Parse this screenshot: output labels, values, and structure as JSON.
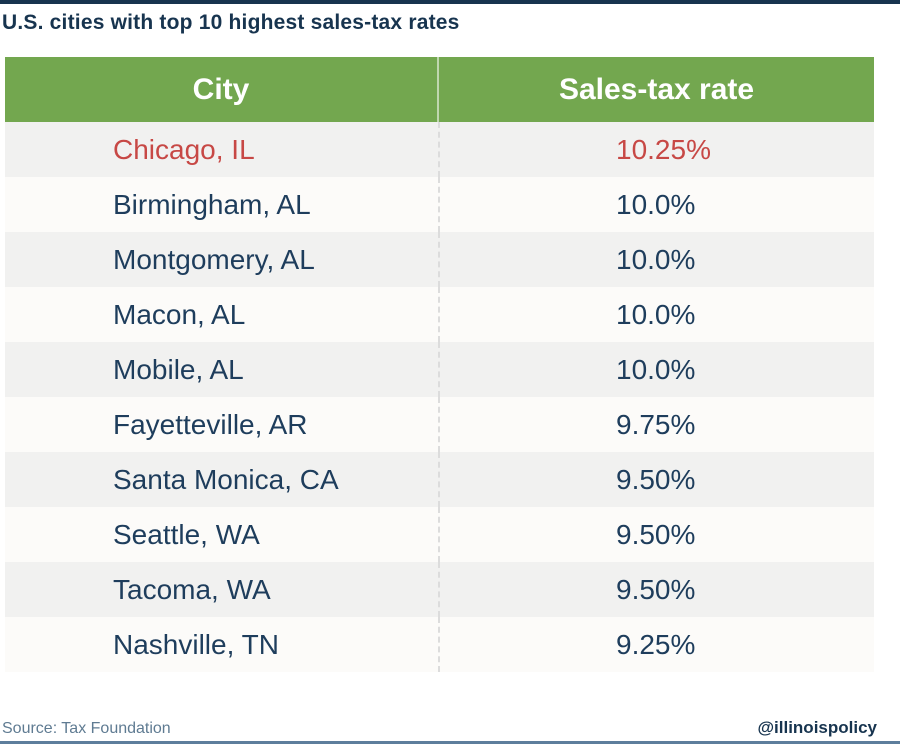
{
  "title": "U.S. cities with top 10 highest sales-tax rates",
  "table": {
    "headers": {
      "city": "City",
      "rate": "Sales-tax rate"
    },
    "rows": [
      {
        "city": "Chicago, IL",
        "rate": "10.25%",
        "highlight": true
      },
      {
        "city": "Birmingham, AL",
        "rate": "10.0%",
        "highlight": false
      },
      {
        "city": "Montgomery, AL",
        "rate": "10.0%",
        "highlight": false
      },
      {
        "city": "Macon, AL",
        "rate": "10.0%",
        "highlight": false
      },
      {
        "city": "Mobile, AL",
        "rate": "10.0%",
        "highlight": false
      },
      {
        "city": "Fayetteville, AR",
        "rate": "9.75%",
        "highlight": false
      },
      {
        "city": "Santa Monica, CA",
        "rate": "9.50%",
        "highlight": false
      },
      {
        "city": "Seattle, WA",
        "rate": "9.50%",
        "highlight": false
      },
      {
        "city": "Tacoma, WA",
        "rate": "9.50%",
        "highlight": false
      },
      {
        "city": "Nashville, TN",
        "rate": "9.25%",
        "highlight": false
      }
    ]
  },
  "footer": {
    "source": "Source: Tax Foundation",
    "handle": "@illinoispolicy"
  },
  "colors": {
    "header_green": "#73a74f",
    "title_navy": "#17344f",
    "row_text_navy": "#1e3d5c",
    "highlight_red": "#c74845",
    "row_shaded": "#f1f1f0",
    "row_plain": "#fcfbf9",
    "source_text": "#5f7b92",
    "bottom_rule": "#5d7e9c"
  },
  "chart_data": {
    "type": "table",
    "title": "U.S. cities with top 10 highest sales-tax rates",
    "columns": [
      "City",
      "Sales-tax rate"
    ],
    "rows": [
      [
        "Chicago, IL",
        10.25
      ],
      [
        "Birmingham, AL",
        10.0
      ],
      [
        "Montgomery, AL",
        10.0
      ],
      [
        "Macon, AL",
        10.0
      ],
      [
        "Mobile, AL",
        10.0
      ],
      [
        "Fayetteville, AR",
        9.75
      ],
      [
        "Santa Monica, CA",
        9.5
      ],
      [
        "Seattle, WA",
        9.5
      ],
      [
        "Tacoma, WA",
        9.5
      ],
      [
        "Nashville, TN",
        9.25
      ]
    ],
    "units": "percent",
    "highlight_row": "Chicago, IL",
    "source": "Tax Foundation"
  }
}
